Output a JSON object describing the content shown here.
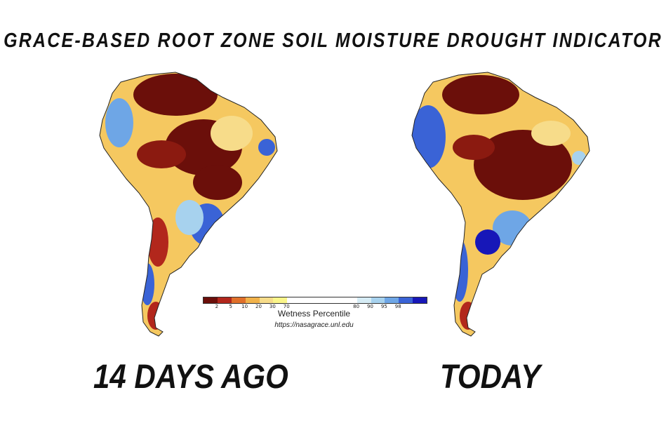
{
  "title": "GRACE-BASED ROOT ZONE SOIL MOISTURE DROUGHT INDICATOR",
  "maps": {
    "left_label": "14 DAYS AGO",
    "right_label": "TODAY"
  },
  "legend": {
    "title": "Wetness Percentile",
    "url": "https://nasagrace.unl.edu",
    "ticks": [
      "2",
      "5",
      "10",
      "20",
      "30",
      "70",
      "80",
      "90",
      "95",
      "98"
    ],
    "colors": [
      "#6b0f0a",
      "#b2271c",
      "#e0702a",
      "#f1b24a",
      "#f7dc8a",
      "#fbf68a",
      "#ffffff",
      "#d6ecf5",
      "#a7d2ee",
      "#6ea6e6",
      "#3a63d6",
      "#1717b8"
    ]
  }
}
